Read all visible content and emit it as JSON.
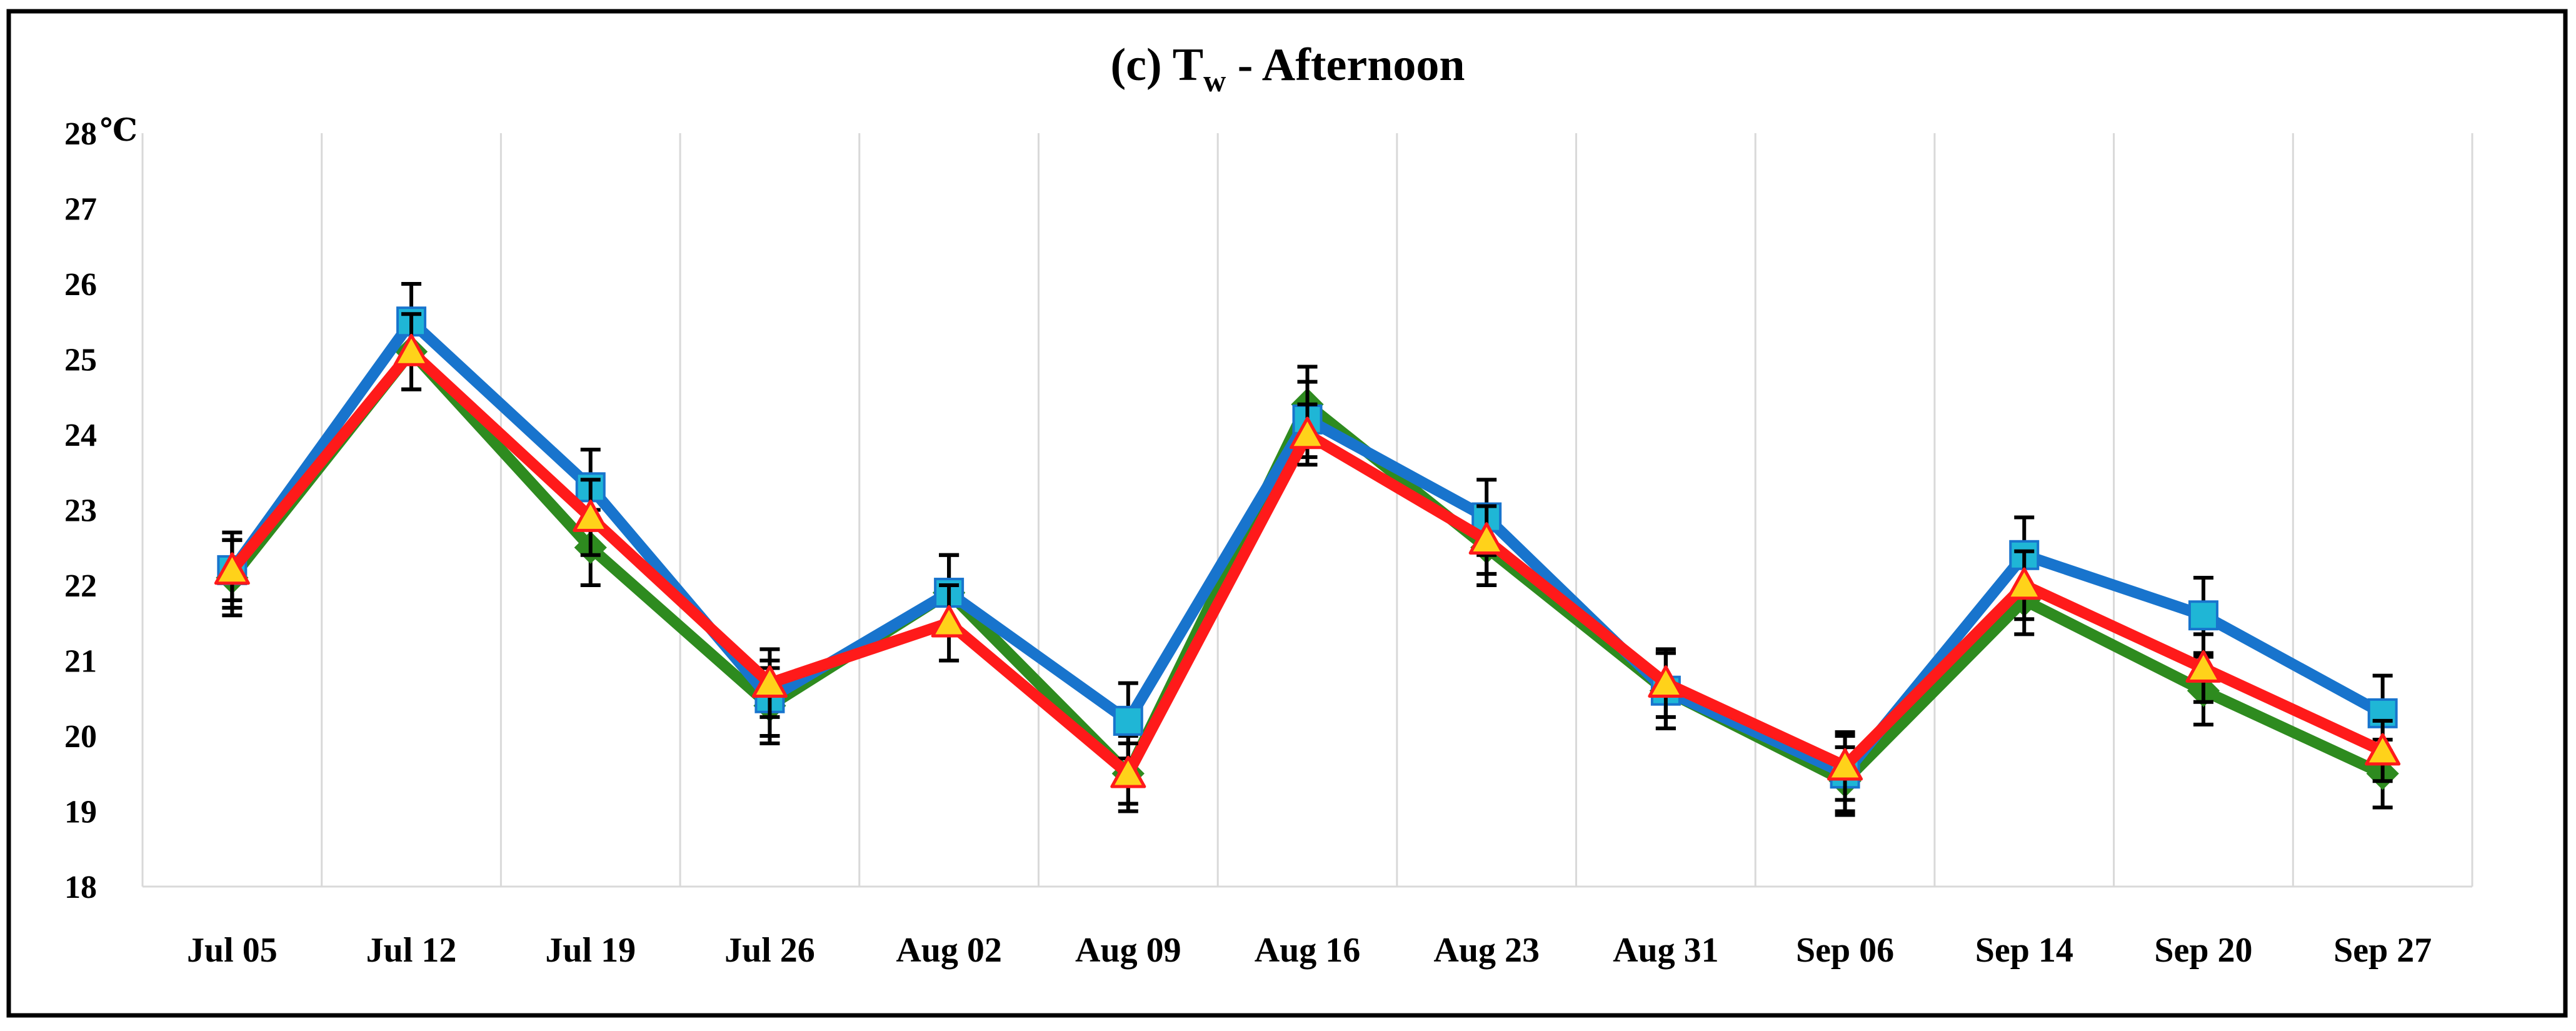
{
  "chart_data": {
    "type": "line",
    "title_prefix": "(c) ",
    "title_main": "T",
    "title_sub": "w",
    "title_suffix": " - Afternoon",
    "y_unit": "℃",
    "ylim": [
      18,
      28
    ],
    "yticks": [
      "18",
      "19",
      "20",
      "21",
      "22",
      "23",
      "24",
      "25",
      "26",
      "27",
      "28"
    ],
    "categories": [
      "Jul 05",
      "Jul 12",
      "Jul 19",
      "Jul 26",
      "Aug 02",
      "Aug 09",
      "Aug 16",
      "Aug 23",
      "Aug 31",
      "Sep 06",
      "Sep 14",
      "Sep 20",
      "Sep 27"
    ],
    "series": [
      {
        "name": "Series 1 (green, diamond)",
        "color": "#2E8B1F",
        "marker": "diamond",
        "values": [
          22.1,
          25.1,
          22.5,
          20.4,
          21.9,
          19.5,
          24.4,
          22.5,
          20.6,
          19.4,
          21.8,
          20.6,
          19.5
        ],
        "errors": [
          0.5,
          0.5,
          0.5,
          0.5,
          0.5,
          0.5,
          0.5,
          0.5,
          0.5,
          0.45,
          0.45,
          0.45,
          0.45
        ]
      },
      {
        "name": "Series 2 (blue, square)",
        "color": "#1874CD",
        "marker_fill": "#1FB6D6",
        "marker": "square",
        "values": [
          22.2,
          25.5,
          23.3,
          20.5,
          21.9,
          20.2,
          24.2,
          22.9,
          20.6,
          19.5,
          22.4,
          21.6,
          20.3
        ],
        "errors": [
          0.5,
          0.5,
          0.5,
          0.5,
          0.5,
          0.5,
          0.5,
          0.5,
          0.5,
          0.5,
          0.5,
          0.5,
          0.5
        ]
      },
      {
        "name": "Series 3 (red, triangle)",
        "color": "#FF1A1A",
        "marker_fill": "#FFD21A",
        "marker": "triangle",
        "values": [
          22.2,
          25.1,
          22.9,
          20.7,
          21.5,
          19.5,
          24.0,
          22.6,
          20.7,
          19.6,
          22.0,
          20.9,
          19.8
        ],
        "errors": [
          0.4,
          0.5,
          0.5,
          0.45,
          0.5,
          0.4,
          0.4,
          0.45,
          0.45,
          0.45,
          0.45,
          0.45,
          0.4
        ]
      }
    ]
  }
}
